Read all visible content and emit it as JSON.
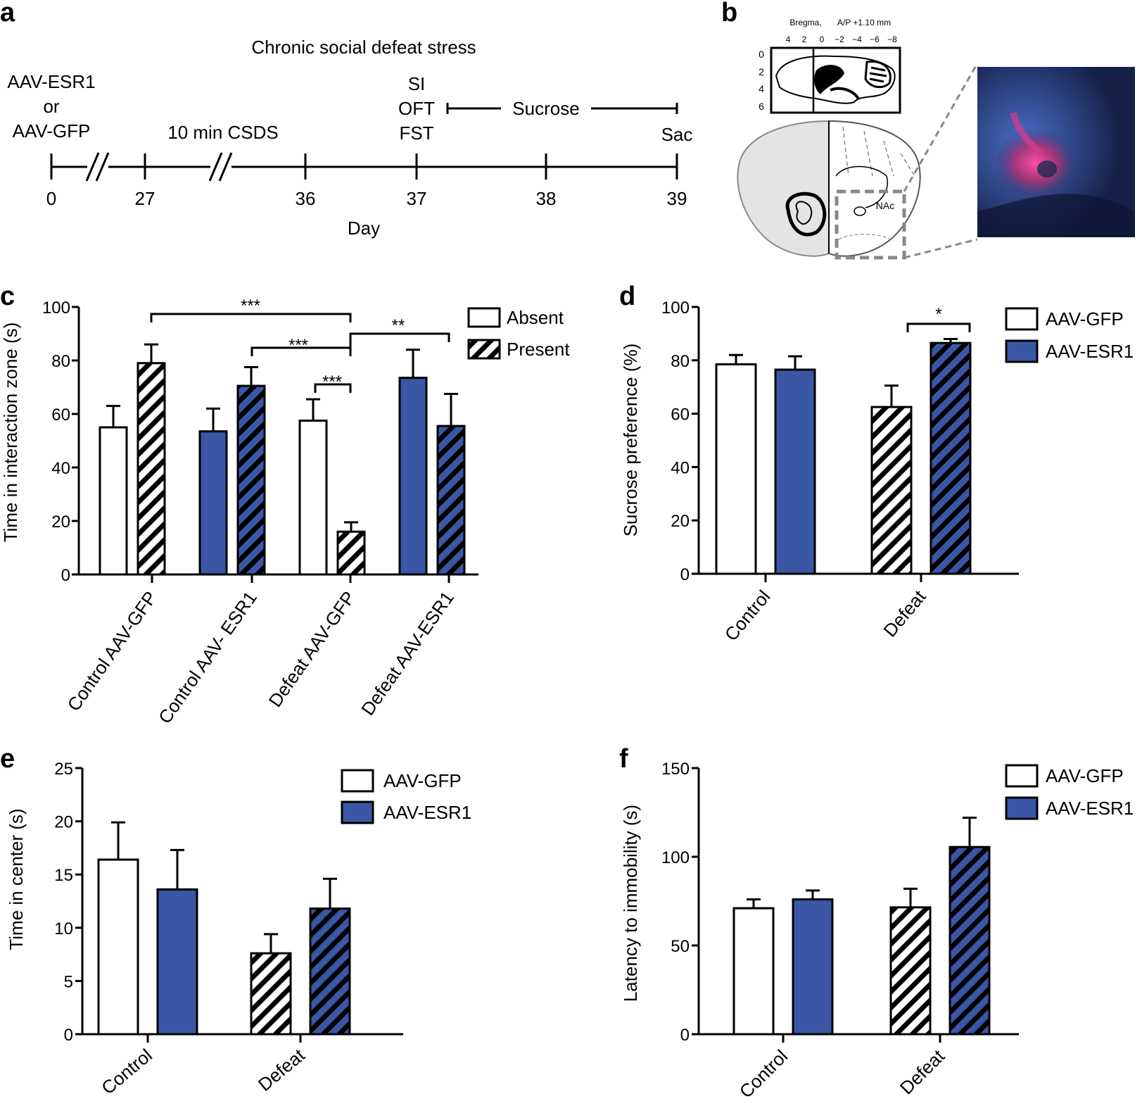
{
  "colors": {
    "esr1_blue": "#3a57a5",
    "hatch": "#000000",
    "bar_outline": "#000000",
    "fluor_bg": "#1c2a55",
    "fluor_signal": "#d23b8a"
  },
  "panels": {
    "a": "a",
    "b": "b",
    "c": "c",
    "d": "d",
    "e": "e",
    "f": "f"
  },
  "timeline": {
    "title": "Chronic social defeat stress",
    "virus_lines": [
      "AAV-ESR1",
      "or",
      "AAV-GFP"
    ],
    "csds_label": "10 min CSDS",
    "test_lines": [
      "SI",
      "OFT",
      "FST"
    ],
    "sucrose_label": "Sucrose",
    "sac_label": "Sac",
    "days": [
      "0",
      "27",
      "36",
      "37",
      "38",
      "39"
    ],
    "axis_label": "Day"
  },
  "brain": {
    "bregma_label": "Bregma,",
    "ap_label": "A/P +1.10 mm",
    "ap_ticks": [
      "4",
      "2",
      "0",
      "−2",
      "−4",
      "−6",
      "−8"
    ],
    "dv_ticks": [
      "0",
      "2",
      "4",
      "6"
    ],
    "region_label": "NAc",
    "image_icon": "fluorescence-micrograph-icon"
  },
  "chart_data": [
    {
      "panel": "c",
      "type": "bar",
      "ylabel": "Time in interaction zone (s)",
      "ylim": [
        0,
        100
      ],
      "yticks": [
        "0",
        "20",
        "40",
        "60",
        "80",
        "100"
      ],
      "categories": [
        "Control AAV-GFP",
        "Control AAV- ESR1",
        "Defeat AAV-GFP",
        "Defeat AAV-ESR1"
      ],
      "legend": [
        "Absent",
        "Present"
      ],
      "series": [
        {
          "name": "Absent",
          "values": [
            55,
            53.5,
            57.5,
            73.5
          ],
          "errors": [
            8,
            8.5,
            8,
            10.5
          ]
        },
        {
          "name": "Present",
          "values": [
            79,
            70.5,
            16,
            55.5
          ],
          "errors": [
            7,
            7,
            3.5,
            12
          ]
        }
      ],
      "significance": [
        "***",
        "***",
        "***",
        "**"
      ]
    },
    {
      "panel": "d",
      "type": "bar",
      "ylabel": "Sucrose preference (%)",
      "ylim": [
        0,
        100
      ],
      "yticks": [
        "0",
        "20",
        "40",
        "60",
        "80",
        "100"
      ],
      "categories": [
        "Control",
        "Defeat"
      ],
      "legend": [
        "AAV-GFP",
        "AAV-ESR1"
      ],
      "series": [
        {
          "name": "AAV-GFP",
          "values": [
            78.5,
            62.5
          ],
          "errors": [
            3.5,
            8
          ]
        },
        {
          "name": "AAV-ESR1",
          "values": [
            76.5,
            86.5
          ],
          "errors": [
            5,
            1.5
          ]
        }
      ],
      "significance": [
        "*"
      ]
    },
    {
      "panel": "e",
      "type": "bar",
      "ylabel": "Time in center (s)",
      "ylim": [
        0,
        25
      ],
      "yticks": [
        "0",
        "5",
        "10",
        "15",
        "20",
        "25"
      ],
      "categories": [
        "Control",
        "Defeat"
      ],
      "legend": [
        "AAV-GFP",
        "AAV-ESR1"
      ],
      "series": [
        {
          "name": "AAV-GFP",
          "values": [
            16.4,
            7.6
          ],
          "errors": [
            3.5,
            1.8
          ]
        },
        {
          "name": "AAV-ESR1",
          "values": [
            13.6,
            11.8
          ],
          "errors": [
            3.7,
            2.8
          ]
        }
      ]
    },
    {
      "panel": "f",
      "type": "bar",
      "ylabel": "Latency to immobility (s)",
      "ylim": [
        0,
        150
      ],
      "yticks": [
        "0",
        "50",
        "100",
        "150"
      ],
      "categories": [
        "Control",
        "Defeat"
      ],
      "legend": [
        "AAV-GFP",
        "AAV-ESR1"
      ],
      "series": [
        {
          "name": "AAV-GFP",
          "values": [
            71,
            71.5
          ],
          "errors": [
            5,
            10.5
          ]
        },
        {
          "name": "AAV-ESR1",
          "values": [
            76,
            105.5
          ],
          "errors": [
            5,
            16.5
          ]
        }
      ]
    }
  ]
}
